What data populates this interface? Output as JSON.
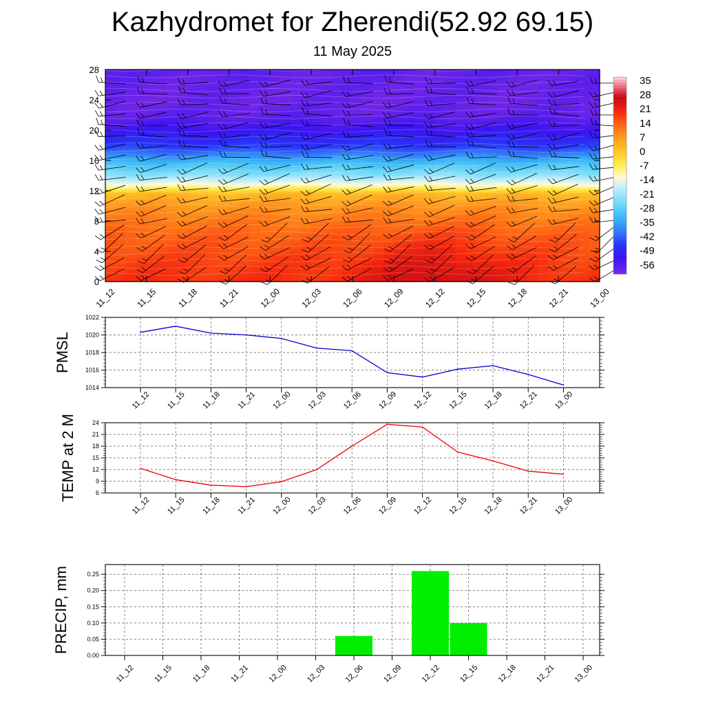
{
  "header": {
    "title": "Kazhydromet for Zherendi(52.92 69.15)",
    "subtitle": "11 May 2025"
  },
  "chart_data": [
    {
      "type": "heatmap",
      "title": "",
      "xlabel": "",
      "ylabel": "",
      "x": [
        "11_12",
        "11_15",
        "11_18",
        "11_21",
        "12_00",
        "12_03",
        "12_06",
        "12_09",
        "12_12",
        "12_15",
        "12_18",
        "12_21",
        "13_00"
      ],
      "ylim": [
        0,
        28
      ],
      "yticks": [
        0,
        4,
        8,
        12,
        16,
        20,
        24,
        28
      ],
      "colorbar": {
        "labels": [
          "35",
          "28",
          "21",
          "14",
          "7",
          "0",
          "-7",
          "-14",
          "-21",
          "-28",
          "-35",
          "-42",
          "-49",
          "-56"
        ],
        "range": [
          -60,
          38
        ]
      },
      "temperature_by_level": [
        {
          "level": 0,
          "t": 20
        },
        {
          "level": 2,
          "t": 19
        },
        {
          "level": 4,
          "t": 17
        },
        {
          "level": 6,
          "t": 15
        },
        {
          "level": 8,
          "t": 12
        },
        {
          "level": 10,
          "t": 8
        },
        {
          "level": 11.6,
          "t": 3
        },
        {
          "level": 12.6,
          "t": -10
        },
        {
          "level": 14,
          "t": -22
        },
        {
          "level": 16,
          "t": -33
        },
        {
          "level": 17.8,
          "t": -45
        },
        {
          "level": 20,
          "t": -52
        },
        {
          "level": 22,
          "t": -57
        },
        {
          "level": 24,
          "t": -58
        },
        {
          "level": 28,
          "t": -57
        }
      ],
      "surface_warm_core": {
        "x": "12_12",
        "peak_anomaly": 7
      },
      "wind_barbs": true
    },
    {
      "type": "line",
      "ylabel": "PMSL",
      "x": [
        "11_12",
        "11_15",
        "11_18",
        "11_21",
        "12_00",
        "12_03",
        "12_06",
        "12_09",
        "12_12",
        "12_15",
        "12_18",
        "12_21",
        "13_00"
      ],
      "series": [
        {
          "values": [
            1020.3,
            1021.0,
            1020.2,
            1020.0,
            1019.6,
            1018.5,
            1018.2,
            1015.7,
            1015.2,
            1016.1,
            1016.5,
            1015.5,
            1014.3
          ],
          "color": "#0000cc"
        }
      ],
      "ylim": [
        1014,
        1022
      ],
      "yticks": [
        1014,
        1016,
        1018,
        1020,
        1022
      ],
      "grid": true
    },
    {
      "type": "line",
      "ylabel": "TEMP at 2 M",
      "x": [
        "11_12",
        "11_15",
        "11_18",
        "11_21",
        "12_00",
        "12_03",
        "12_06",
        "12_09",
        "12_12",
        "12_15",
        "12_18",
        "12_21",
        "13_00"
      ],
      "series": [
        {
          "values": [
            12.3,
            9.4,
            8.0,
            7.6,
            8.9,
            12.0,
            18.0,
            23.6,
            22.9,
            16.5,
            14.2,
            11.6,
            10.8
          ],
          "color": "#ee0000"
        }
      ],
      "ylim": [
        6,
        24
      ],
      "yticks": [
        6,
        9,
        12,
        15,
        18,
        21,
        24
      ],
      "grid": true
    },
    {
      "type": "bar",
      "ylabel": "PRECIP, mm",
      "categories": [
        "11_12",
        "11_15",
        "11_18",
        "11_21",
        "12_00",
        "12_03",
        "12_06",
        "12_09",
        "12_12",
        "12_15",
        "12_18",
        "12_21",
        "13_00"
      ],
      "values": [
        0,
        0,
        0,
        0,
        0,
        0,
        0.06,
        0,
        0.26,
        0.1,
        0,
        0,
        0
      ],
      "ylim": [
        0,
        0.28
      ],
      "yticks": [
        "0.00",
        "0.05",
        "0.10",
        "0.15",
        "0.20",
        "0.25"
      ],
      "bar_color": "#00ee00",
      "grid": true
    }
  ]
}
